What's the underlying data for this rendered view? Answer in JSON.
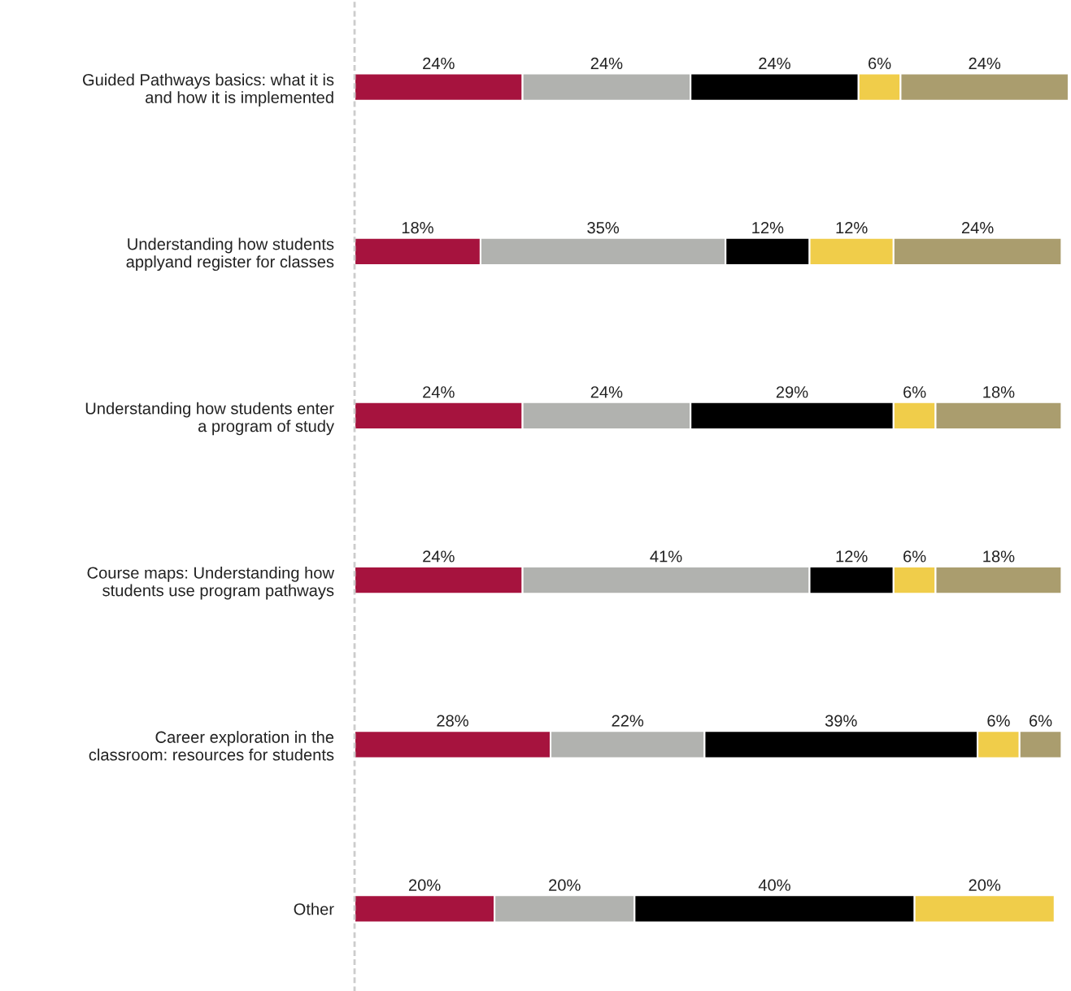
{
  "chart_data": {
    "type": "bar",
    "orientation": "horizontal",
    "stacked": true,
    "tick_labels": "y",
    "grid": false,
    "legend": false,
    "categories": [
      "Guided Pathways basics: what it is\nand how it is implemented",
      "Understanding how students\napplyand register for classes",
      "Understanding how students enter\na program of study",
      "Course maps: Understanding how\nstudents use program pathways",
      "Career exploration in the\nclassroom: resources for students",
      "Other"
    ],
    "series": [
      {
        "color": "#a6133e",
        "values": [
          24,
          18,
          24,
          24,
          28,
          20
        ],
        "value_labels": [
          "24%",
          "18%",
          "24%",
          "24%",
          "28%",
          "20%"
        ]
      },
      {
        "color": "#b1b2af",
        "values": [
          24,
          35,
          24,
          41,
          22,
          20
        ],
        "value_labels": [
          "24%",
          "35%",
          "24%",
          "41%",
          "22%",
          "20%"
        ]
      },
      {
        "color": "#000000",
        "values": [
          24,
          12,
          29,
          12,
          39,
          40
        ],
        "value_labels": [
          "24%",
          "12%",
          "29%",
          "12%",
          "39%",
          "40%"
        ]
      },
      {
        "color": "#f0cd4a",
        "values": [
          6,
          12,
          6,
          6,
          6,
          20
        ],
        "value_labels": [
          "6%",
          "12%",
          "6%",
          "6%",
          "6%",
          "20%"
        ]
      },
      {
        "color": "#aa9d6e",
        "values": [
          24,
          24,
          18,
          18,
          6,
          null
        ],
        "value_labels": [
          "24%",
          "24%",
          "18%",
          "18%",
          "6%",
          null
        ]
      }
    ]
  }
}
